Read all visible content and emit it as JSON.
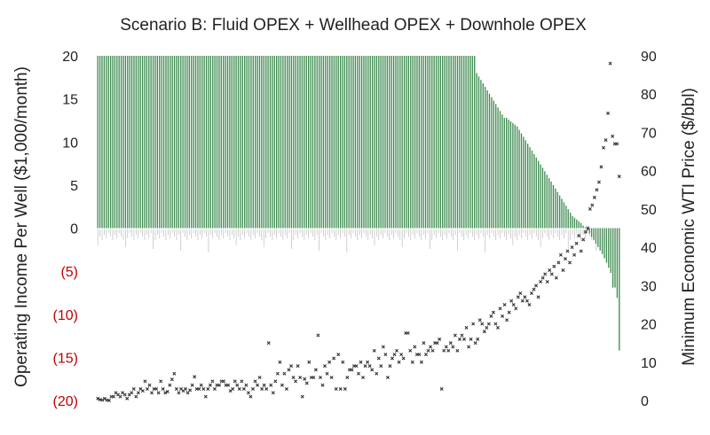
{
  "chart_data": {
    "type": "bar",
    "title": "Scenario B: Fluid OPEX + Wellhead OPEX + Downhole OPEX",
    "ylabel": "Operating Income Per Well ($1,000/month)",
    "y2label": "Minimum Economic WTI Price ($/bbl)",
    "ylim": [
      -20,
      20
    ],
    "y2lim": [
      0,
      90
    ],
    "yticks": [
      20,
      15,
      10,
      5,
      0,
      -5,
      -10,
      -15,
      -20
    ],
    "ytick_labels": [
      "20",
      "15",
      "10",
      "5",
      "0",
      "(5)",
      "(10)",
      "(15)",
      "(20)"
    ],
    "y2ticks": [
      90,
      80,
      70,
      60,
      50,
      40,
      30,
      20,
      10,
      0
    ],
    "grid": false,
    "series": [
      {
        "type": "bar",
        "axis": "left",
        "color": "#3d8a4f",
        "values": [
          20,
          20,
          20,
          20,
          20,
          20,
          20,
          20,
          20,
          20,
          20,
          20,
          20,
          20,
          20,
          20,
          20,
          20,
          20,
          20,
          20,
          20,
          20,
          20,
          20,
          20,
          20,
          20,
          20,
          20,
          20,
          20,
          20,
          20,
          20,
          20,
          20,
          20,
          20,
          20,
          20,
          20,
          20,
          20,
          20,
          20,
          20,
          20,
          20,
          20,
          20,
          20,
          20,
          20,
          20,
          20,
          20,
          20,
          20,
          20,
          20,
          20,
          20,
          20,
          20,
          20,
          20,
          20,
          20,
          20,
          20,
          20,
          20,
          20,
          20,
          20,
          20,
          20,
          20,
          20,
          20,
          20,
          20,
          20,
          20,
          20,
          20,
          20,
          20,
          20,
          20,
          20,
          20,
          20,
          20,
          20,
          20,
          20,
          20,
          20,
          20,
          20,
          20,
          20,
          20,
          20,
          20,
          20,
          20,
          20,
          20,
          20,
          20,
          20,
          20,
          20,
          20,
          20,
          20,
          20,
          20,
          20,
          20,
          20,
          20,
          20,
          20,
          20,
          20,
          20,
          20,
          20,
          20,
          20,
          20,
          20,
          20,
          20,
          20,
          20,
          20,
          20,
          20,
          20,
          20,
          20,
          20,
          20,
          20,
          20,
          20,
          20,
          20,
          20,
          20,
          20,
          20,
          20,
          20,
          20,
          20,
          20,
          20,
          20,
          20,
          20,
          20,
          20,
          20,
          20,
          20,
          20,
          20,
          20,
          20,
          20,
          20,
          20,
          18,
          17.6,
          17.2,
          16.8,
          16.4,
          16,
          15.6,
          15.2,
          14.8,
          14.4,
          14,
          13.6,
          13.2,
          12.8,
          12.8,
          12.6,
          12.4,
          12.2,
          12,
          11.8,
          11.4,
          11,
          10.6,
          10.2,
          9.8,
          9.4,
          9,
          8.6,
          8.2,
          7.8,
          7.4,
          7,
          6.6,
          6.2,
          5.8,
          5.4,
          5,
          4.6,
          4.2,
          3.8,
          3.4,
          3,
          2.6,
          2.2,
          1.8,
          1.4,
          1.2,
          1,
          0.8,
          0.6,
          0.3,
          0.1,
          -0.3,
          -0.6,
          -1,
          -1.4,
          -1.8,
          -2.2,
          -2.6,
          -3,
          -3.5,
          -4,
          -4.6,
          -5.2,
          -6.9,
          -6.9,
          -8.1,
          -14.2
        ]
      },
      {
        "type": "scatter",
        "axis": "right",
        "marker": "x",
        "color": "#333333",
        "values": [
          0.5,
          0.2,
          0.1,
          0.5,
          0.1,
          0,
          1,
          1,
          2,
          1.5,
          1,
          2,
          1.5,
          0.5,
          1.5,
          2,
          3,
          1,
          2,
          3,
          2.5,
          5,
          3,
          4,
          2,
          3,
          3,
          2,
          5,
          3,
          2,
          2.3,
          4,
          5.5,
          7,
          3,
          2,
          3,
          2.5,
          3,
          2,
          2.7,
          4,
          6.2,
          3,
          3,
          4,
          3,
          1,
          3,
          4,
          5,
          3,
          4,
          4,
          5,
          5,
          4,
          4,
          2.5,
          3,
          5,
          4,
          3,
          5,
          3,
          4,
          2,
          1,
          3,
          5,
          4,
          6,
          3,
          4,
          3,
          15,
          4,
          2,
          5,
          7,
          10,
          4,
          7,
          3,
          8,
          9,
          6,
          5,
          9,
          6,
          1,
          5.6,
          4.5,
          10,
          6,
          6,
          8,
          17,
          6,
          4,
          9,
          7,
          10,
          6,
          11,
          3,
          12,
          3,
          10,
          3,
          6,
          8,
          8,
          9,
          9,
          7,
          10,
          6,
          9,
          10,
          9,
          8,
          13,
          7,
          11,
          9,
          14,
          12,
          6,
          9,
          11,
          12,
          13,
          10,
          12,
          11,
          17.6,
          17.6,
          13,
          10,
          14,
          12,
          12,
          10,
          15,
          12,
          13,
          14,
          13,
          15,
          15,
          16,
          3,
          13,
          14,
          13,
          15,
          14,
          17,
          13,
          16,
          17,
          16,
          19,
          14,
          16,
          20,
          15,
          16,
          21,
          20,
          18,
          19,
          20,
          22,
          23,
          20,
          19,
          24,
          22,
          25,
          21,
          23,
          26,
          25,
          24,
          27,
          28,
          26,
          27,
          26,
          25,
          28,
          29,
          30,
          27,
          31,
          32,
          33,
          31,
          34,
          33,
          35,
          32,
          36,
          38,
          34,
          37,
          39,
          36,
          40,
          38,
          41,
          43,
          39,
          42,
          44,
          45,
          50,
          51,
          53,
          55,
          57,
          61,
          66,
          68,
          75,
          88,
          69,
          67,
          67,
          58.5
        ]
      }
    ]
  }
}
